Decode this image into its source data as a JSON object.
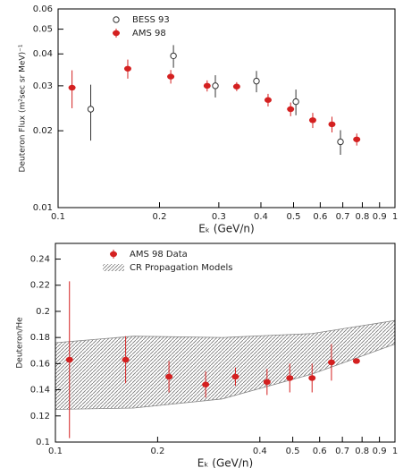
{
  "chart_data": [
    {
      "type": "scatter",
      "x_label": "Eₖ (GeV/n)",
      "y_label": "Deuteron Flux (m²sec sr MeV)⁻¹",
      "xscale": "log",
      "yscale": "log",
      "legend": "upper left",
      "xlim": [
        0.1,
        1
      ],
      "xticks": [
        0.1,
        0.2,
        0.3,
        0.4,
        0.5,
        0.6,
        0.7,
        0.8,
        0.9,
        1
      ],
      "ylim": [
        0.01,
        0.06
      ],
      "yticks": [
        0.01,
        0.02,
        0.03,
        0.04,
        0.05,
        0.06
      ],
      "series": [
        {
          "name": "BESS 93",
          "color": "#333333",
          "marker": "open",
          "x": [
            0.125,
            0.22,
            0.293,
            0.388,
            0.508,
            0.689
          ],
          "values": [
            0.0243,
            0.0393,
            0.03,
            0.0313,
            0.026,
            0.0181
          ],
          "errors": [
            0.006,
            0.004,
            0.003,
            0.003,
            0.003,
            0.002
          ]
        },
        {
          "name": "AMS 98",
          "color": "#d42020",
          "marker": "dot",
          "x": [
            0.11,
            0.161,
            0.216,
            0.277,
            0.339,
            0.42,
            0.49,
            0.57,
            0.65,
            0.77
          ],
          "values": [
            0.0295,
            0.035,
            0.0326,
            0.03,
            0.0298,
            0.0264,
            0.0243,
            0.022,
            0.0212,
            0.0185
          ],
          "errors": [
            0.005,
            0.003,
            0.002,
            0.0015,
            0.0012,
            0.0015,
            0.0015,
            0.0015,
            0.0015,
            0.001
          ]
        }
      ]
    },
    {
      "type": "scatter",
      "x_label": "Eₖ (GeV/n)",
      "y_label": "Deuteron/He",
      "xscale": "log",
      "yscale": "linear",
      "legend": "upper left",
      "xlim": [
        0.1,
        1
      ],
      "xticks": [
        0.1,
        0.2,
        0.4,
        0.5,
        0.6,
        0.7,
        0.8,
        0.9,
        1
      ],
      "ylim": [
        0.1,
        0.252
      ],
      "yticks": [
        0.1,
        0.12,
        0.14,
        0.16,
        0.18,
        0.2,
        0.22,
        0.24
      ],
      "band": {
        "name": "CR Propagation Models",
        "color": "#888888",
        "x": [
          0.1,
          0.17,
          0.31,
          0.57,
          1
        ],
        "lower": [
          0.125,
          0.126,
          0.133,
          0.152,
          0.175
        ],
        "upper": [
          0.176,
          0.181,
          0.18,
          0.183,
          0.193
        ]
      },
      "series": [
        {
          "name": "AMS 98 Data",
          "color": "#d42020",
          "marker": "dot",
          "x": [
            0.11,
            0.161,
            0.216,
            0.277,
            0.339,
            0.42,
            0.49,
            0.57,
            0.65,
            0.77
          ],
          "values": [
            0.163,
            0.163,
            0.15,
            0.144,
            0.15,
            0.146,
            0.149,
            0.149,
            0.161,
            0.162
          ],
          "errors": [
            0.06,
            0.018,
            0.012,
            0.01,
            0.007,
            0.01,
            0.011,
            0.011,
            0.014,
            0
          ]
        }
      ]
    }
  ]
}
